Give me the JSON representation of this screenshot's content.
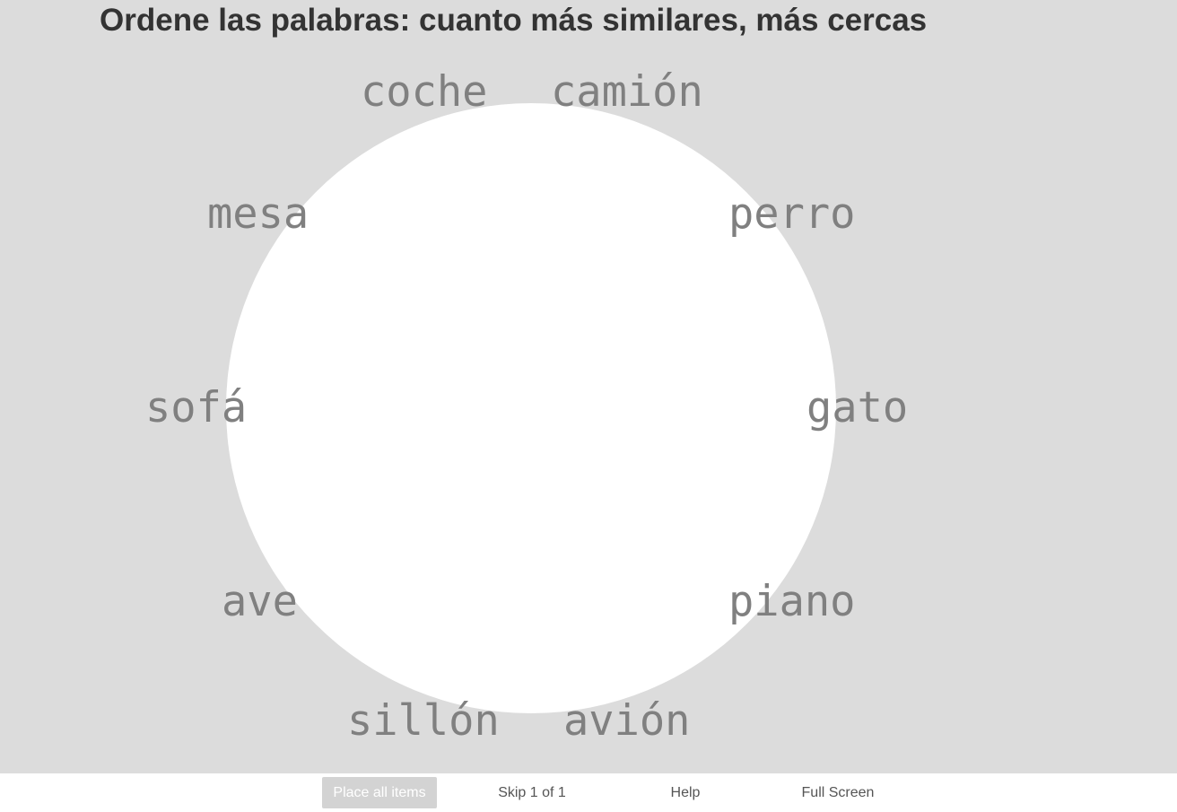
{
  "title": "Ordene las palabras: cuanto más similares, más cercas",
  "words": [
    "coche",
    "camión",
    "mesa",
    "perro",
    "sofá",
    "gato",
    "ave",
    "piano",
    "sillón",
    "avión"
  ],
  "footer": {
    "place_all_label": "Place all items",
    "skip_label": "Skip 1 of 1",
    "help_label": "Help",
    "fullscreen_label": "Full Screen"
  },
  "colors": {
    "background": "#dcdcdc",
    "arena": "#ffffff",
    "word_text": "#808080",
    "title_text": "#333333",
    "place_button_bg": "#d3d3d3"
  }
}
